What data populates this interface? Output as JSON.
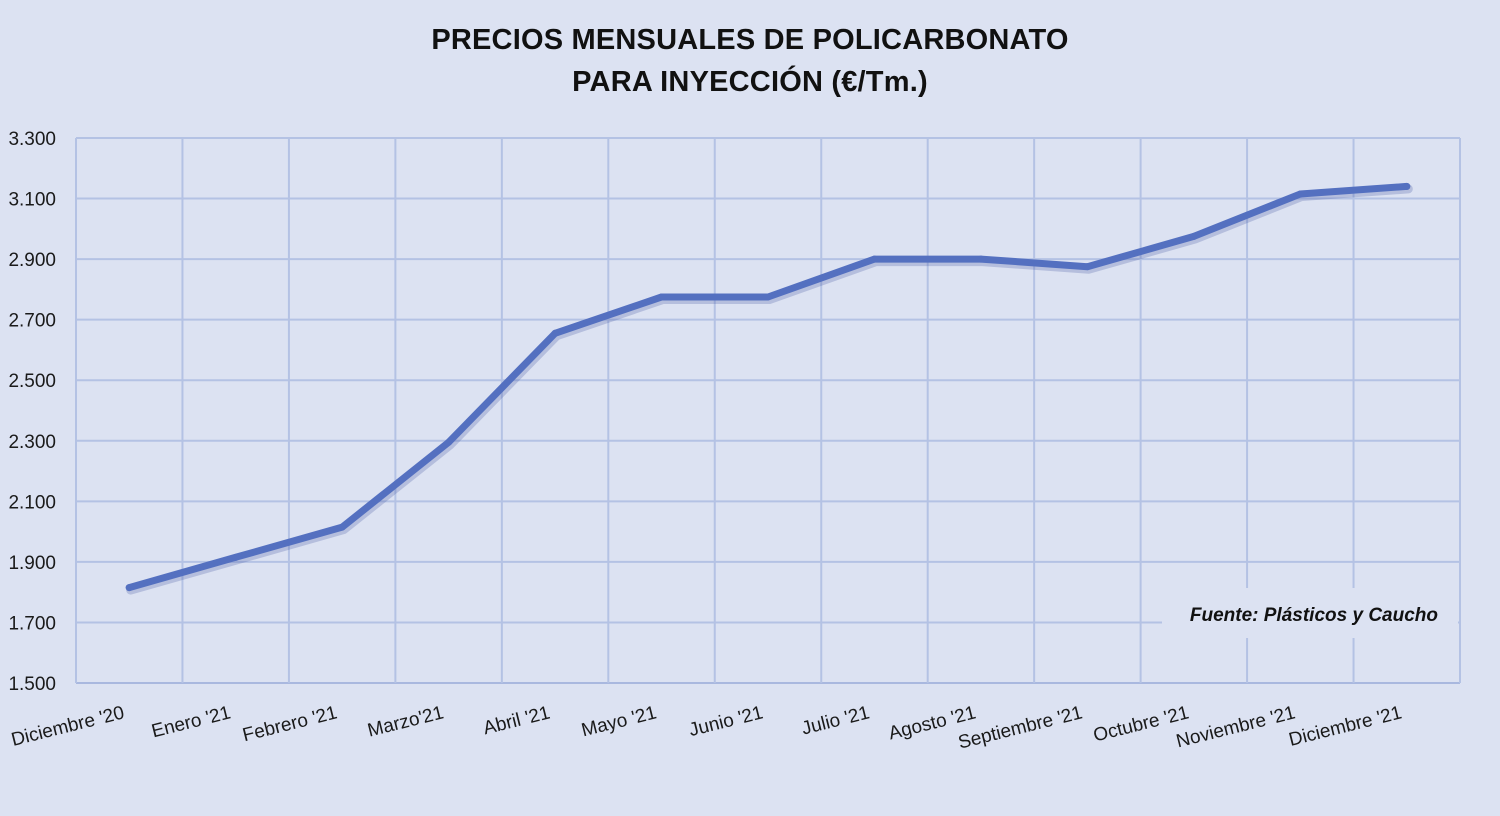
{
  "chart_data": {
    "type": "line",
    "title": "PRECIOS MENSUALES DE POLICARBONATO",
    "subtitle": "PARA INYECCIÓN (€/Tm.)",
    "xlabel": "",
    "ylabel": "",
    "categories": [
      "Diciembre '20",
      "Enero '21",
      "Febrero '21",
      "Marzo'21",
      "Abril '21",
      "Mayo '21",
      "Junio '21",
      "Julio '21",
      "Agosto '21",
      "Septiembre '21",
      "Octubre '21",
      "Noviembre '21",
      "Diciembre '21"
    ],
    "series": [
      {
        "name": "",
        "values": [
          1815,
          1915,
          2015,
          2295,
          2655,
          2775,
          2775,
          2900,
          2900,
          2875,
          2975,
          3115,
          3140
        ]
      }
    ],
    "yticks": [
      "1.500",
      "1.700",
      "1.900",
      "2.100",
      "2.300",
      "2.500",
      "2.700",
      "2.900",
      "3.100",
      "3.300"
    ],
    "ytick_values": [
      1500,
      1700,
      1900,
      2100,
      2300,
      2500,
      2700,
      2900,
      3100,
      3300
    ],
    "ylim": [
      1500,
      3300
    ],
    "grid": true,
    "legend": "none",
    "annotation": "Fuente: Plásticos y Caucho",
    "colors": {
      "line": "#5470c0",
      "grid": "#b4c2e4",
      "background": "#dce2f2"
    }
  }
}
